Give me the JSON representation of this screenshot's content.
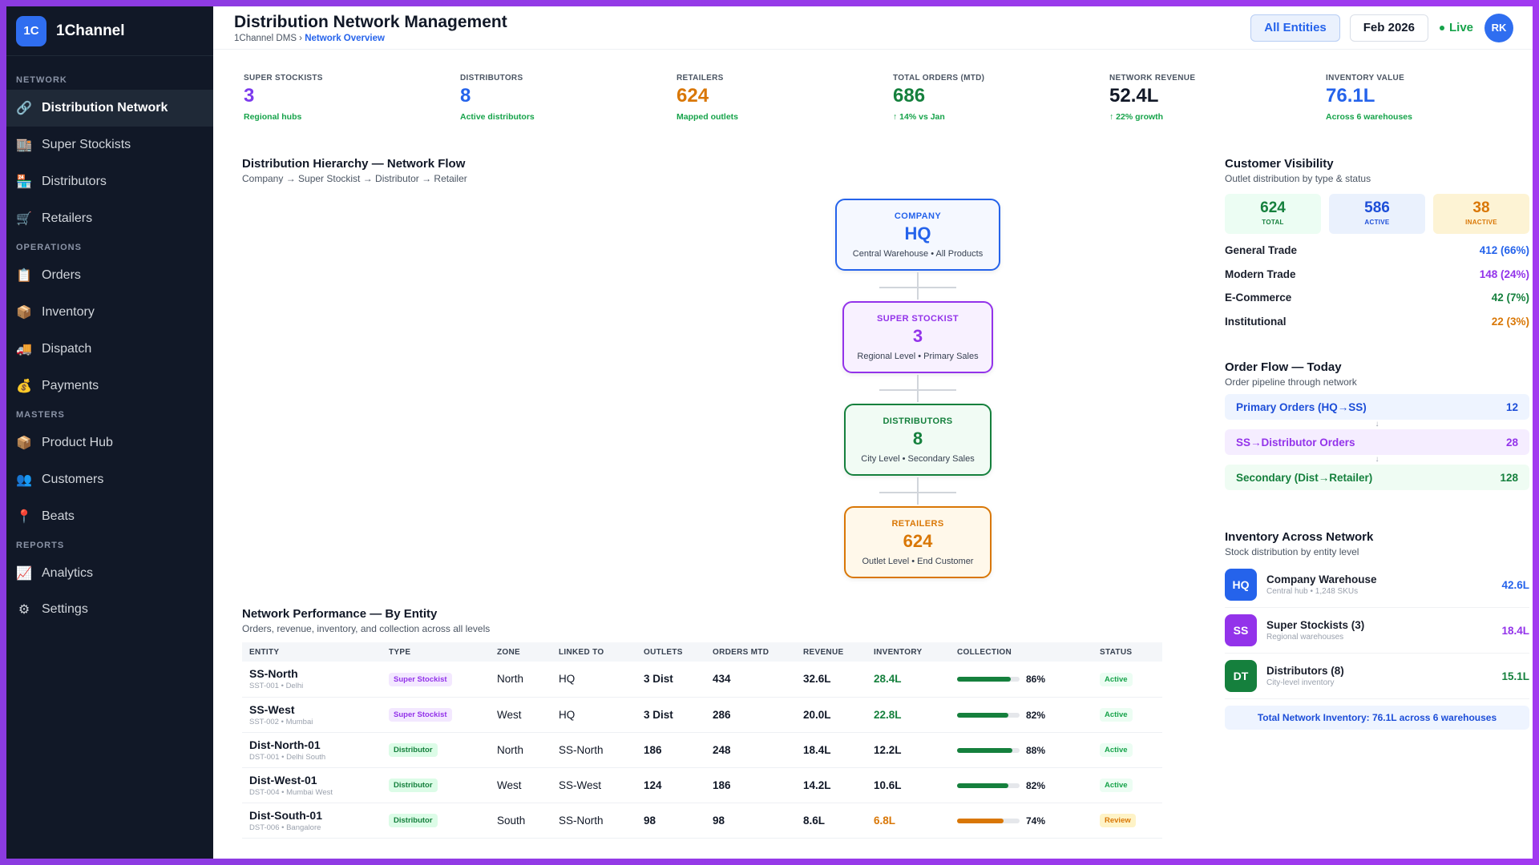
{
  "brand": {
    "logo": "1C",
    "name": "1Channel"
  },
  "sidebar": {
    "sections": [
      {
        "title": "NETWORK",
        "items": [
          {
            "label": "Distribution Network",
            "icon": "🔗",
            "active": true
          },
          {
            "label": "Super Stockists",
            "icon": "🏬"
          },
          {
            "label": "Distributors",
            "icon": "🏪"
          },
          {
            "label": "Retailers",
            "icon": "🛒"
          }
        ]
      },
      {
        "title": "OPERATIONS",
        "items": [
          {
            "label": "Orders",
            "icon": "📋"
          },
          {
            "label": "Inventory",
            "icon": "📦"
          },
          {
            "label": "Dispatch",
            "icon": "🚚"
          },
          {
            "label": "Payments",
            "icon": "💰"
          }
        ]
      },
      {
        "title": "MASTERS",
        "items": [
          {
            "label": "Product Hub",
            "icon": "📦"
          },
          {
            "label": "Customers",
            "icon": "👥"
          },
          {
            "label": "Beats",
            "icon": "📍"
          }
        ]
      },
      {
        "title": "REPORTS",
        "items": [
          {
            "label": "Analytics",
            "icon": "📈"
          },
          {
            "label": "Settings",
            "icon": "⚙"
          }
        ]
      }
    ]
  },
  "header": {
    "title": "Distribution Network Management",
    "breadcrumb_root": "1Channel DMS",
    "breadcrumb_sep": " › ",
    "breadcrumb_current": "Network Overview",
    "entities_button": "All Entities",
    "period_button": "Feb 2026",
    "live_label": "Live",
    "avatar": "RK"
  },
  "kpis": [
    {
      "label": "SUPER STOCKISTS",
      "value": "3",
      "sub": "Regional hubs",
      "color": "#7c3aed",
      "sub_color": "#16a34a"
    },
    {
      "label": "DISTRIBUTORS",
      "value": "8",
      "sub": "Active distributors",
      "color": "#2563eb",
      "sub_color": "#16a34a"
    },
    {
      "label": "RETAILERS",
      "value": "624",
      "sub": "Mapped outlets",
      "color": "#d97706",
      "sub_color": "#16a34a"
    },
    {
      "label": "TOTAL ORDERS (MTD)",
      "value": "686",
      "sub": "↑ 14% vs Jan",
      "color": "#15803d",
      "sub_color": "#16a34a"
    },
    {
      "label": "NETWORK REVENUE",
      "value": "52.4L",
      "sub": "↑ 22% growth",
      "color": "#111827",
      "sub_color": "#16a34a"
    },
    {
      "label": "INVENTORY VALUE",
      "value": "76.1L",
      "sub": "Across 6 warehouses",
      "color": "#2563eb",
      "sub_color": "#16a34a"
    }
  ],
  "hierarchy": {
    "title": "Distribution Hierarchy — Network Flow",
    "subtitle": "Company → Super Stockist → Distributor → Retailer",
    "nodes": [
      {
        "label": "COMPANY",
        "value": "HQ",
        "desc": "Central Warehouse • All Products",
        "color": "#2563eb",
        "bg": "#f5f8ff"
      },
      {
        "label": "SUPER STOCKIST",
        "value": "3",
        "desc": "Regional Level • Primary Sales",
        "color": "#9333ea",
        "bg": "#f8f1ff"
      },
      {
        "label": "DISTRIBUTORS",
        "value": "8",
        "desc": "City Level • Secondary Sales",
        "color": "#15803d",
        "bg": "#f1fbf4"
      },
      {
        "label": "RETAILERS",
        "value": "624",
        "desc": "Outlet Level • End Customer",
        "color": "#d97706",
        "bg": "#fff8ea"
      }
    ]
  },
  "performance": {
    "title": "Network Performance — By Entity",
    "subtitle": "Orders, revenue, inventory, and collection across all levels",
    "columns": [
      "ENTITY",
      "TYPE",
      "ZONE",
      "LINKED TO",
      "OUTLETS",
      "ORDERS MTD",
      "REVENUE",
      "INVENTORY",
      "COLLECTION",
      "STATUS"
    ],
    "rows": [
      {
        "name": "SS-North",
        "sub": "SST-001 • Delhi",
        "type": "Super Stockist",
        "type_class": "ss",
        "zone": "North",
        "linked": "HQ",
        "outlets": "3 Dist",
        "orders": "434",
        "revenue": "32.6L",
        "inventory": "28.4L",
        "inv_color": "#15803d",
        "collection": 86,
        "collection_label": "86%",
        "bar_color": "#15803d",
        "status": "Active",
        "status_class": "active"
      },
      {
        "name": "SS-West",
        "sub": "SST-002 • Mumbai",
        "type": "Super Stockist",
        "type_class": "ss",
        "zone": "West",
        "linked": "HQ",
        "outlets": "3 Dist",
        "orders": "286",
        "revenue": "20.0L",
        "inventory": "22.8L",
        "inv_color": "#15803d",
        "collection": 82,
        "collection_label": "82%",
        "bar_color": "#15803d",
        "status": "Active",
        "status_class": "active"
      },
      {
        "name": "Dist-North-01",
        "sub": "DST-001 • Delhi South",
        "type": "Distributor",
        "type_class": "dist",
        "zone": "North",
        "linked": "SS-North",
        "outlets": "186",
        "orders": "248",
        "revenue": "18.4L",
        "inventory": "12.2L",
        "inv_color": "#111827",
        "collection": 88,
        "collection_label": "88%",
        "bar_color": "#15803d",
        "status": "Active",
        "status_class": "active"
      },
      {
        "name": "Dist-West-01",
        "sub": "DST-004 • Mumbai West",
        "type": "Distributor",
        "type_class": "dist",
        "zone": "West",
        "linked": "SS-West",
        "outlets": "124",
        "orders": "186",
        "revenue": "14.2L",
        "inventory": "10.6L",
        "inv_color": "#111827",
        "collection": 82,
        "collection_label": "82%",
        "bar_color": "#15803d",
        "status": "Active",
        "status_class": "active"
      },
      {
        "name": "Dist-South-01",
        "sub": "DST-006 • Bangalore",
        "type": "Distributor",
        "type_class": "dist",
        "zone": "South",
        "linked": "SS-North",
        "outlets": "98",
        "orders": "98",
        "revenue": "8.6L",
        "inventory": "6.8L",
        "inv_color": "#d97706",
        "collection": 74,
        "collection_label": "74%",
        "bar_color": "#d97706",
        "status": "Review",
        "status_class": "review"
      }
    ]
  },
  "visibility": {
    "title": "Customer Visibility",
    "subtitle": "Outlet distribution by type & status",
    "boxes": [
      {
        "value": "624",
        "label": "TOTAL",
        "color": "#15803d",
        "bg": "#ecfdf3"
      },
      {
        "value": "586",
        "label": "ACTIVE",
        "color": "#1d4ed8",
        "bg": "#eaf1fd"
      },
      {
        "value": "38",
        "label": "INACTIVE",
        "color": "#d97706",
        "bg": "#fdf3d4"
      }
    ],
    "rows": [
      {
        "label": "General Trade",
        "value": "412 (66%)",
        "color": "#2563eb"
      },
      {
        "label": "Modern Trade",
        "value": "148 (24%)",
        "color": "#9333ea"
      },
      {
        "label": "E-Commerce",
        "value": "42 (7%)",
        "color": "#15803d"
      },
      {
        "label": "Institutional",
        "value": "22 (3%)",
        "color": "#d97706"
      }
    ]
  },
  "order_flow": {
    "title": "Order Flow — Today",
    "subtitle": "Order pipeline through network",
    "arrow": "↓",
    "items": [
      {
        "label": "Primary Orders (HQ→SS)",
        "value": "12",
        "color": "#1d4ed8",
        "bg": "#eef4ff"
      },
      {
        "label": "SS→Distributor Orders",
        "value": "28",
        "color": "#9333ea",
        "bg": "#f5edff"
      },
      {
        "label": "Secondary (Dist→Retailer)",
        "value": "128",
        "color": "#15803d",
        "bg": "#effcf3"
      }
    ]
  },
  "inventory": {
    "title": "Inventory Across Network",
    "subtitle": "Stock distribution by entity level",
    "items": [
      {
        "badge": "HQ",
        "name": "Company Warehouse",
        "sub": "Central hub • 1,248 SKUs",
        "value": "42.6L",
        "color": "#2563eb"
      },
      {
        "badge": "SS",
        "name": "Super Stockists (3)",
        "sub": "Regional warehouses",
        "value": "18.4L",
        "color": "#9333ea"
      },
      {
        "badge": "DT",
        "name": "Distributors (8)",
        "sub": "City-level inventory",
        "value": "15.1L",
        "color": "#15803d"
      }
    ],
    "total": "Total Network Inventory: 76.1L across 6 warehouses"
  }
}
